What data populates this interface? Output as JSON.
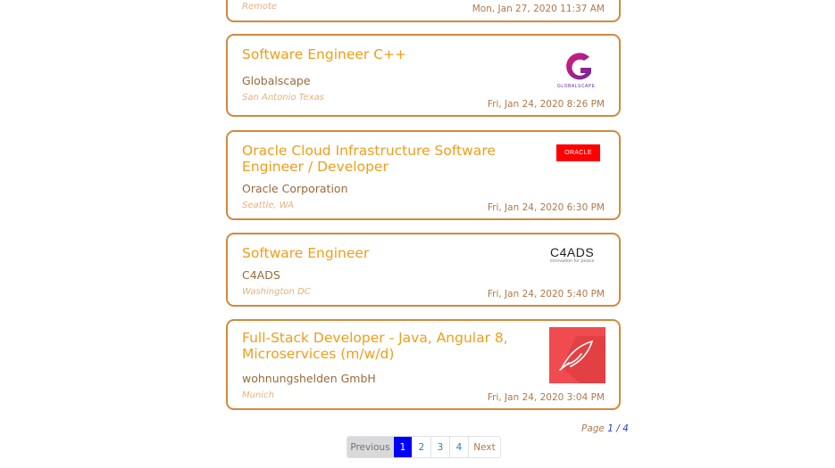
{
  "jobs": [
    {
      "title": "",
      "company": "",
      "location": "Remote",
      "date": "Mon, Jan 27, 2020 11:37 AM"
    },
    {
      "title": "Software Engineer C++",
      "company": "Globalscape",
      "location": "San Antonio Texas",
      "date": "Fri, Jan 24, 2020 8:26 PM",
      "logo_text": "GLOBALSCAPE"
    },
    {
      "title": "Oracle Cloud Infrastructure Software Engineer / Developer",
      "company": "Oracle Corporation",
      "location": "Seattle, WA",
      "date": "Fri, Jan 24, 2020 6:30 PM",
      "logo_text": "ORACLE"
    },
    {
      "title": "Software Engineer",
      "company": "C4ADS",
      "location": "Washington DC",
      "date": "Fri, Jan 24, 2020 5:40 PM",
      "logo_text": "C4ADS",
      "logo_tagline": "innovation for peace"
    },
    {
      "title": "Full-Stack Developer - Java, Angular 8, Microservices (m/w/d)",
      "company": "wohnungshelden GmbH",
      "location": "Munich",
      "date": "Fri, Jan 24, 2020 3:04 PM"
    }
  ],
  "page_info": {
    "label": "Page",
    "current": "1",
    "separator": " / ",
    "total": "4"
  },
  "pagination": {
    "previous": "Previous",
    "pages": [
      "1",
      "2",
      "3",
      "4"
    ],
    "next": "Next",
    "active": "1"
  },
  "colors": {
    "card_border": "#d08a3e",
    "title": "#f09d1a",
    "active_page": "#0000ff"
  }
}
